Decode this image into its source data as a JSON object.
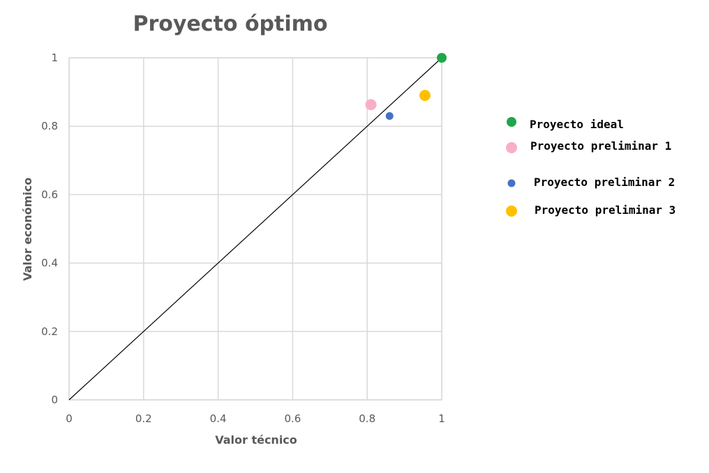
{
  "chart_data": {
    "type": "scatter",
    "title": "Proyecto óptimo",
    "xlabel": "Valor técnico",
    "ylabel": "Valor económico",
    "xlim": [
      0,
      1
    ],
    "ylim": [
      0,
      1
    ],
    "x_ticks": [
      "0",
      "0.2",
      "0.4",
      "0.6",
      "0.8",
      "1"
    ],
    "y_ticks": [
      "0",
      "0.2",
      "0.4",
      "0.6",
      "0.8",
      "1"
    ],
    "x_tick_values": [
      0,
      0.2,
      0.4,
      0.6,
      0.8,
      1
    ],
    "y_tick_values": [
      0,
      0.2,
      0.4,
      0.6,
      0.8,
      1
    ],
    "grid": true,
    "legend_position": "right",
    "reference_line": {
      "from": [
        0,
        0
      ],
      "to": [
        1,
        1
      ],
      "color": "#000000"
    },
    "series": [
      {
        "name": "Proyecto ideal",
        "color": "#1fa64a",
        "points": [
          {
            "x": 1.0,
            "y": 1.0
          }
        ]
      },
      {
        "name": "Proyecto preliminar 1",
        "color": "#f9aec8",
        "points": [
          {
            "x": 0.81,
            "y": 0.863
          }
        ]
      },
      {
        "name": "Proyecto preliminar 2",
        "color": "#4472c4",
        "points": [
          {
            "x": 0.86,
            "y": 0.83
          }
        ]
      },
      {
        "name": "Proyecto preliminar 3",
        "color": "#ffc000",
        "points": [
          {
            "x": 0.955,
            "y": 0.89
          }
        ]
      }
    ]
  }
}
